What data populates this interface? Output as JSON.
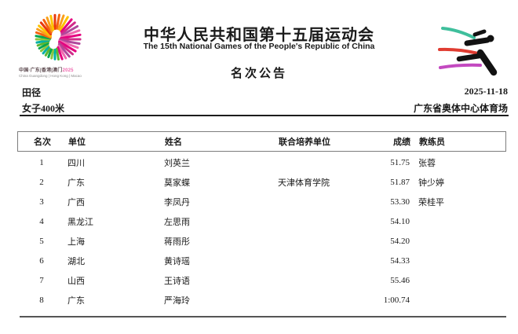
{
  "emblem": {
    "line1_text": "中国·广东|香港|澳门",
    "line1_year": "2025",
    "line2": "China Guangdong | Hong Kong | Macao",
    "colors": {
      "orange": [
        "#e8380d",
        "#f5620f",
        "#f9a01b",
        "#fdc300"
      ],
      "pink": [
        "#e5007f",
        "#d12c8a",
        "#b0499c",
        "#ef6ab0"
      ],
      "green": [
        "#00a650",
        "#5cb531",
        "#00b0a6",
        "#8cc63f"
      ],
      "year": "#ef6ab0"
    }
  },
  "header": {
    "title_cn": "中华人民共和国第十五届运动会",
    "title_en": "The 15th National Games of the People's Republic of China",
    "announcement": "名次公告"
  },
  "pictogram": {
    "label": "athletics-pictogram",
    "colors": {
      "top": "#3fbf9c",
      "middle": "#e03c31",
      "bottom": "#c349c0",
      "figure": "#121212"
    }
  },
  "meta": {
    "sport": "田径",
    "event": "女子400米",
    "date": "2025-11-18",
    "venue": "广东省奥体中心体育场"
  },
  "table": {
    "columns": [
      "名次",
      "单位",
      "姓名",
      "联合培养单位",
      "成绩",
      "教练员"
    ],
    "rows": [
      {
        "rank": "1",
        "unit": "四川",
        "name": "刘英兰",
        "joint": "",
        "result": "51.75",
        "coach": "张蓉"
      },
      {
        "rank": "2",
        "unit": "广东",
        "name": "莫家蝶",
        "joint": "天津体育学院",
        "result": "51.87",
        "coach": "钟少婷"
      },
      {
        "rank": "3",
        "unit": "广西",
        "name": "李凤丹",
        "joint": "",
        "result": "53.30",
        "coach": "荣桂平"
      },
      {
        "rank": "4",
        "unit": "黑龙江",
        "name": "左思雨",
        "joint": "",
        "result": "54.10",
        "coach": ""
      },
      {
        "rank": "5",
        "unit": "上海",
        "name": "蒋雨彤",
        "joint": "",
        "result": "54.20",
        "coach": ""
      },
      {
        "rank": "6",
        "unit": "湖北",
        "name": "黄诗瑶",
        "joint": "",
        "result": "54.33",
        "coach": ""
      },
      {
        "rank": "7",
        "unit": "山西",
        "name": "王诗语",
        "joint": "",
        "result": "55.46",
        "coach": ""
      },
      {
        "rank": "8",
        "unit": "广东",
        "name": "严海玲",
        "joint": "",
        "result": "1:00.74",
        "coach": ""
      }
    ]
  }
}
